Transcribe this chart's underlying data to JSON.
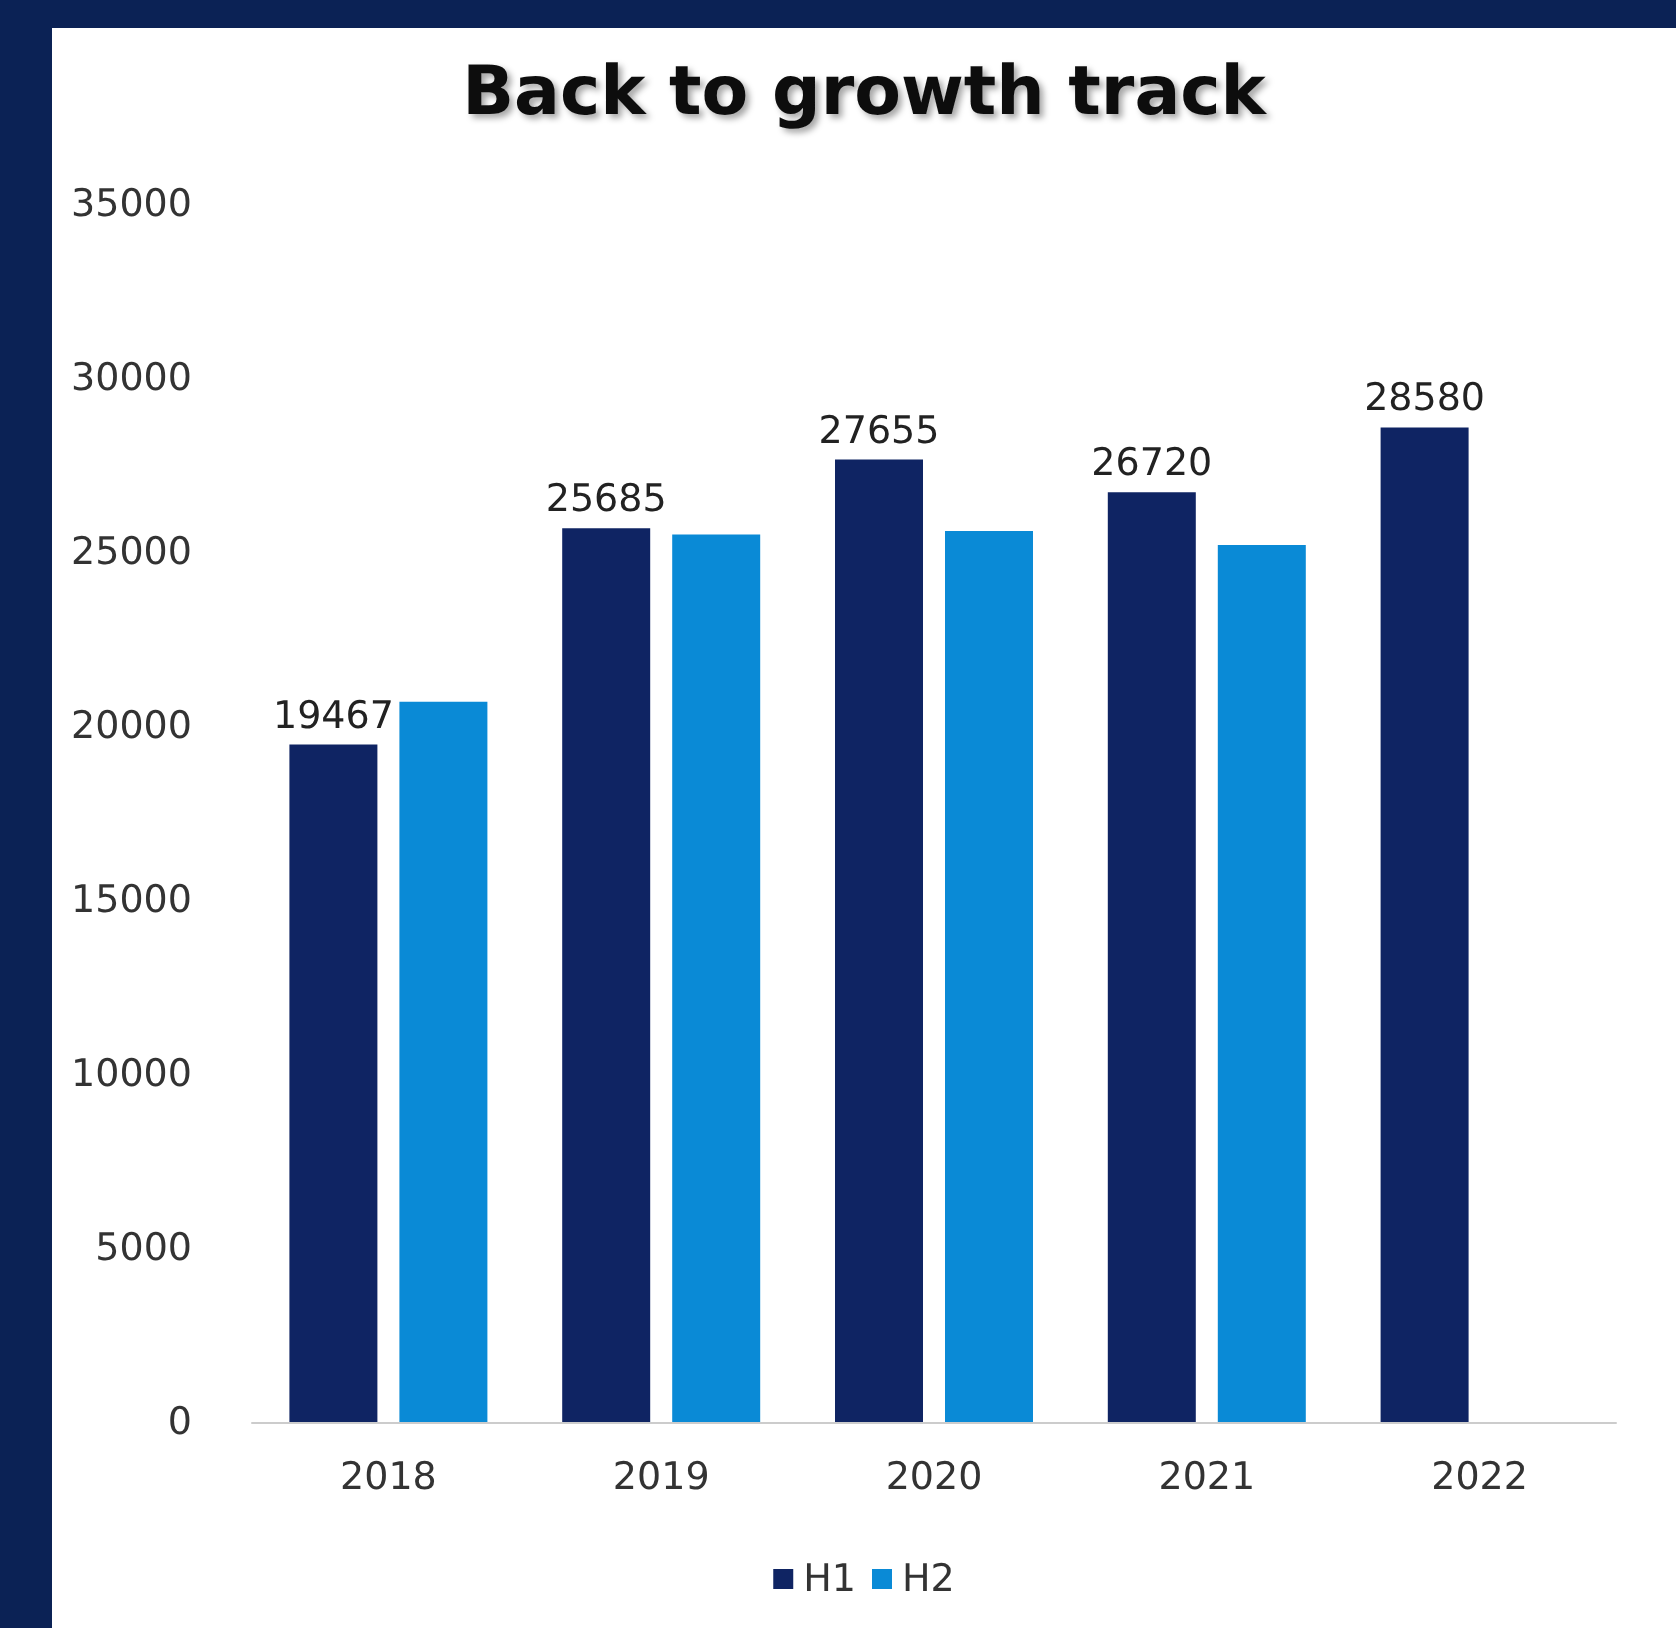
{
  "chart_data": {
    "type": "bar",
    "title": "Back to growth track",
    "categories": [
      "2018",
      "2019",
      "2020",
      "2021",
      "2022"
    ],
    "series": [
      {
        "name": "H1",
        "color": "#0f2463",
        "values": [
          19467,
          25685,
          27655,
          26720,
          28580
        ],
        "value_labels": [
          "19467",
          "25685",
          "27655",
          "26720",
          "28580"
        ]
      },
      {
        "name": "H2",
        "color": "#0a8ad6",
        "values": [
          20700,
          25500,
          25600,
          25200,
          null
        ]
      }
    ],
    "ylim": [
      0,
      35000
    ],
    "yticks": [
      0,
      5000,
      10000,
      15000,
      20000,
      25000,
      30000,
      35000
    ],
    "grid": false,
    "legend": "bottom"
  }
}
